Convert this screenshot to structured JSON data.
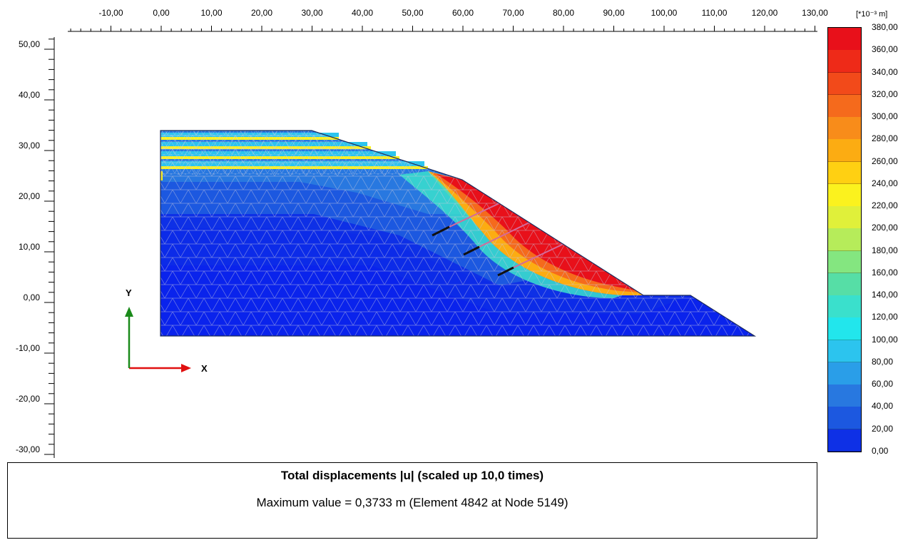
{
  "x_axis": {
    "tick_labels": [
      "-10,00",
      "0,00",
      "10,00",
      "20,00",
      "30,00",
      "40,00",
      "50,00",
      "60,00",
      "70,00",
      "80,00",
      "90,00",
      "100,00",
      "110,00",
      "120,00",
      "130,00"
    ],
    "tick_values": [
      -10,
      0,
      10,
      20,
      30,
      40,
      50,
      60,
      70,
      80,
      90,
      100,
      110,
      120,
      130
    ]
  },
  "y_axis": {
    "tick_labels": [
      "50,00",
      "40,00",
      "30,00",
      "20,00",
      "10,00",
      "0,00",
      "-10,00",
      "-20,00",
      "-30,00"
    ],
    "tick_values": [
      50,
      40,
      30,
      20,
      10,
      0,
      -10,
      -20,
      -30
    ]
  },
  "legend": {
    "unit_label": "[*10⁻³ m]",
    "labels": [
      "380,00",
      "360,00",
      "340,00",
      "320,00",
      "300,00",
      "280,00",
      "260,00",
      "240,00",
      "220,00",
      "200,00",
      "180,00",
      "160,00",
      "140,00",
      "120,00",
      "100,00",
      "80,00",
      "60,00",
      "40,00",
      "20,00",
      "0,00"
    ],
    "colors": [
      "#e8101a",
      "#ee2a18",
      "#f24a1a",
      "#f56a1c",
      "#f88c1a",
      "#fcac12",
      "#ffd012",
      "#fbf21e",
      "#e0f03a",
      "#b6ec5a",
      "#84e680",
      "#56dea6",
      "#3ae0cc",
      "#22e6ec",
      "#2cc4ee",
      "#2a9ee8",
      "#2878e0",
      "#1c58e0",
      "#0e30e6",
      "#0010f0"
    ]
  },
  "coordinate_axes": {
    "x_label": "X",
    "y_label": "Y"
  },
  "info": {
    "title": "Total displacements |u| (scaled up 10,0 times)",
    "max_value": "Maximum value = 0,3733 m (Element 4842 at Node 5149)"
  }
}
